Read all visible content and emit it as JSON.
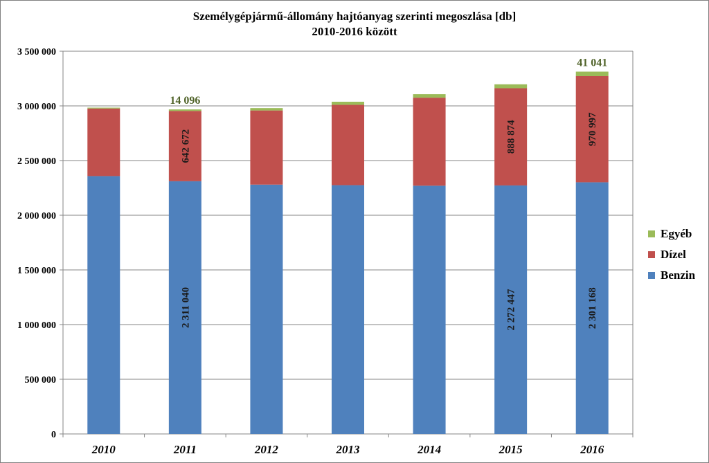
{
  "chart_data": {
    "type": "bar",
    "stacked": true,
    "title": "Személygépjármű-állomány  hajtóanyag szerinti megoszlása [db]",
    "subtitle": "2010-2016 között",
    "categories": [
      "2010",
      "2011",
      "2012",
      "2013",
      "2014",
      "2015",
      "2016"
    ],
    "series": [
      {
        "name": "Benzin",
        "color": "#4F81BD",
        "values": [
          2358000,
          2311040,
          2280000,
          2275000,
          2270000,
          2272447,
          2301168
        ]
      },
      {
        "name": "Dízel",
        "color": "#C0504D",
        "values": [
          618000,
          642672,
          678000,
          735000,
          805000,
          888874,
          970997
        ]
      },
      {
        "name": "Egyéb",
        "color": "#9BBB59",
        "values": [
          8000,
          14096,
          22000,
          28000,
          32000,
          36000,
          41041
        ]
      }
    ],
    "data_labels": [
      {
        "series": 0,
        "index": 1,
        "text": "2 311 040"
      },
      {
        "series": 0,
        "index": 5,
        "text": "2 272 447"
      },
      {
        "series": 0,
        "index": 6,
        "text": "2 301 168"
      },
      {
        "series": 1,
        "index": 1,
        "text": "642 672"
      },
      {
        "series": 1,
        "index": 5,
        "text": "888 874"
      },
      {
        "series": 1,
        "index": 6,
        "text": "970 997"
      },
      {
        "series": 2,
        "index": 1,
        "text": "14 096"
      },
      {
        "series": 2,
        "index": 6,
        "text": "41 041"
      }
    ],
    "ylim": [
      0,
      3500000
    ],
    "yticks": [
      0,
      500000,
      1000000,
      1500000,
      2000000,
      2500000,
      3000000,
      3500000
    ],
    "ytick_labels": [
      "0",
      "500 000",
      "1 000 000",
      "1 500 000",
      "2 000 000",
      "2 500 000",
      "3 000 000",
      "3 500 000"
    ],
    "grid": true,
    "legend_position": "right",
    "legend_order": [
      "Egyéb",
      "Dízel",
      "Benzin"
    ]
  }
}
